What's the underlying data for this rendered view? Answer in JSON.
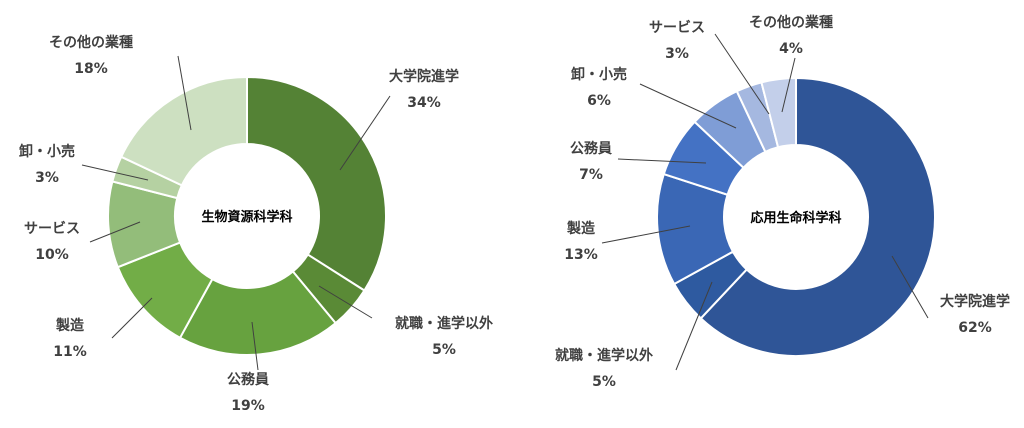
{
  "chart_data": [
    {
      "type": "pie",
      "title": "生物資源科学科",
      "categories": [
        "大学院進学",
        "就職・進学以外",
        "公務員",
        "製造",
        "サービス",
        "卸・小売",
        "その他の業種"
      ],
      "values": [
        34,
        5,
        19,
        11,
        10,
        3,
        18
      ],
      "value_labels": [
        "34%",
        "5%",
        "19%",
        "11%",
        "10%",
        "3%",
        "18%"
      ],
      "colors": [
        "#548235",
        "#5a8a36",
        "#67a23f",
        "#72ad47",
        "#93bd7a",
        "#b5d1a2",
        "#cde0c1"
      ]
    },
    {
      "type": "pie",
      "title": "応用生命科学科",
      "categories": [
        "大学院進学",
        "就職・進学以外",
        "製造",
        "公務員",
        "卸・小売",
        "サービス",
        "その他の業種"
      ],
      "values": [
        62,
        5,
        13,
        7,
        6,
        3,
        4
      ],
      "value_labels": [
        "62%",
        "5%",
        "13%",
        "7%",
        "6%",
        "3%",
        "4%"
      ],
      "colors": [
        "#2f5597",
        "#2e5aa0",
        "#3a67b5",
        "#4472c4",
        "#7f9dd6",
        "#a5b8e0",
        "#c3cfea"
      ]
    }
  ]
}
